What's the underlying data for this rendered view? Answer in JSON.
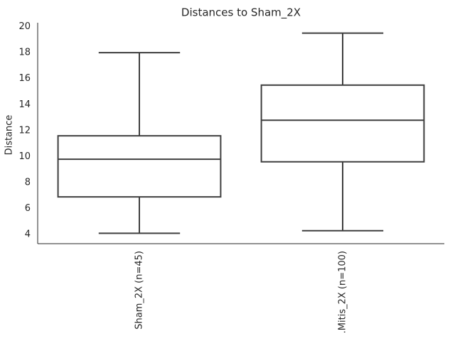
{
  "chart_data": {
    "type": "box",
    "title": "Distances to Sham_2X",
    "ylabel": "Distance",
    "categories": [
      "Sham_2X (n=45)",
      ".Mitis_2X (n=100)"
    ],
    "whisker_low": [
      4.1,
      4.3
    ],
    "q1": [
      6.9,
      9.6
    ],
    "median": [
      9.8,
      12.8
    ],
    "q3": [
      11.6,
      15.5
    ],
    "whisker_high": [
      18.0,
      19.5
    ],
    "color": "#3f3f3f",
    "fill": "#ffffff",
    "ylim": [
      3.3,
      20.3
    ],
    "yticks": [
      4,
      6,
      8,
      10,
      12,
      14,
      16,
      18,
      20
    ]
  }
}
